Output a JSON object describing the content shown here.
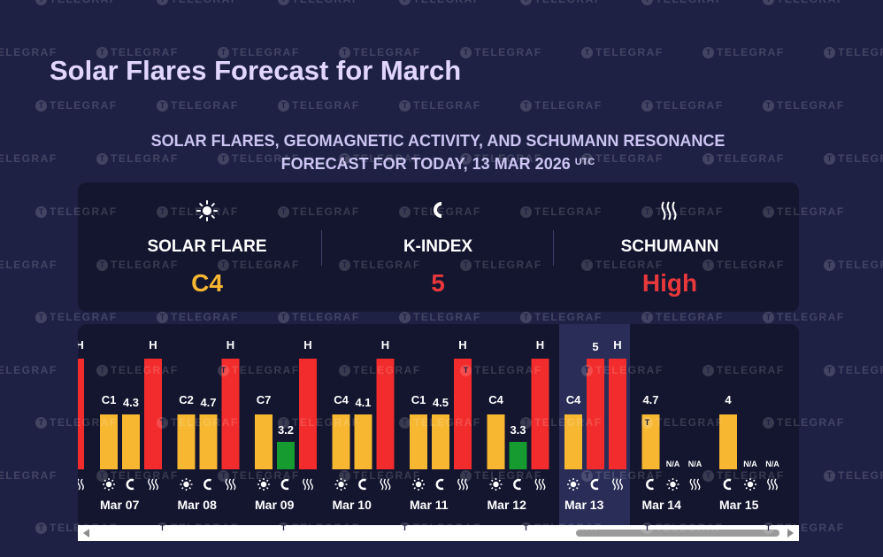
{
  "watermark": "TELEGRAF",
  "header": {
    "title": "Solar Flares Forecast for March",
    "subtitle_line1": "SOLAR FLARES, GEOMAGNETIC ACTIVITY, AND SCHUMANN RESONANCE",
    "subtitle_line2": "FORECAST FOR TODAY, 13 MAR 2026",
    "subtitle_sup": "UTC"
  },
  "summary": {
    "solar_flare": {
      "label": "SOLAR FLARE",
      "value": "C4",
      "icon": "sun-icon",
      "color": "#f7b731"
    },
    "k_index": {
      "label": "K-INDEX",
      "value": "5",
      "icon": "magnet-icon",
      "color": "#e8383b"
    },
    "schumann": {
      "label": "SCHUMANN",
      "value": "High",
      "icon": "waves-icon",
      "color": "#e8383b"
    }
  },
  "colors": {
    "yellow": "#f7b731",
    "red": "#f22c2c",
    "green": "#159b2f",
    "background": "#1e2144",
    "panel": "#14152f",
    "today": "#292d57"
  },
  "chart_data": {
    "type": "bar",
    "today": "Mar 13",
    "partial_left_label": "H",
    "categories": [
      "Mar 07",
      "Mar 08",
      "Mar 09",
      "Mar 10",
      "Mar 11",
      "Mar 12",
      "Mar 13",
      "Mar 14",
      "Mar 15"
    ],
    "days": [
      {
        "date": "Mar 07",
        "flare": "C1",
        "k": "4.3",
        "schumann": "H"
      },
      {
        "date": "Mar 08",
        "flare": "C2",
        "k": "4.7",
        "schumann": "H"
      },
      {
        "date": "Mar 09",
        "flare": "C7",
        "k": "3.2",
        "schumann": "H"
      },
      {
        "date": "Mar 10",
        "flare": "C4",
        "k": "4.1",
        "schumann": "H"
      },
      {
        "date": "Mar 11",
        "flare": "C1",
        "k": "4.5",
        "schumann": "H"
      },
      {
        "date": "Mar 12",
        "flare": "C4",
        "k": "3.3",
        "schumann": "H"
      },
      {
        "date": "Mar 13",
        "flare": "C4",
        "k": "5",
        "schumann": "H"
      },
      {
        "date": "Mar 14",
        "flare": null,
        "k": "4.7",
        "schumann": "N/A",
        "flare_label": "N/A"
      },
      {
        "date": "Mar 15",
        "flare": null,
        "k": "4",
        "schumann": "N/A",
        "flare_label": "N/A"
      }
    ],
    "k_values": [
      4.3,
      4.7,
      3.2,
      4.1,
      4.5,
      3.3,
      5,
      4.7,
      4
    ],
    "legend_icons": [
      "sun-icon",
      "magnet-icon",
      "waves-icon"
    ]
  }
}
